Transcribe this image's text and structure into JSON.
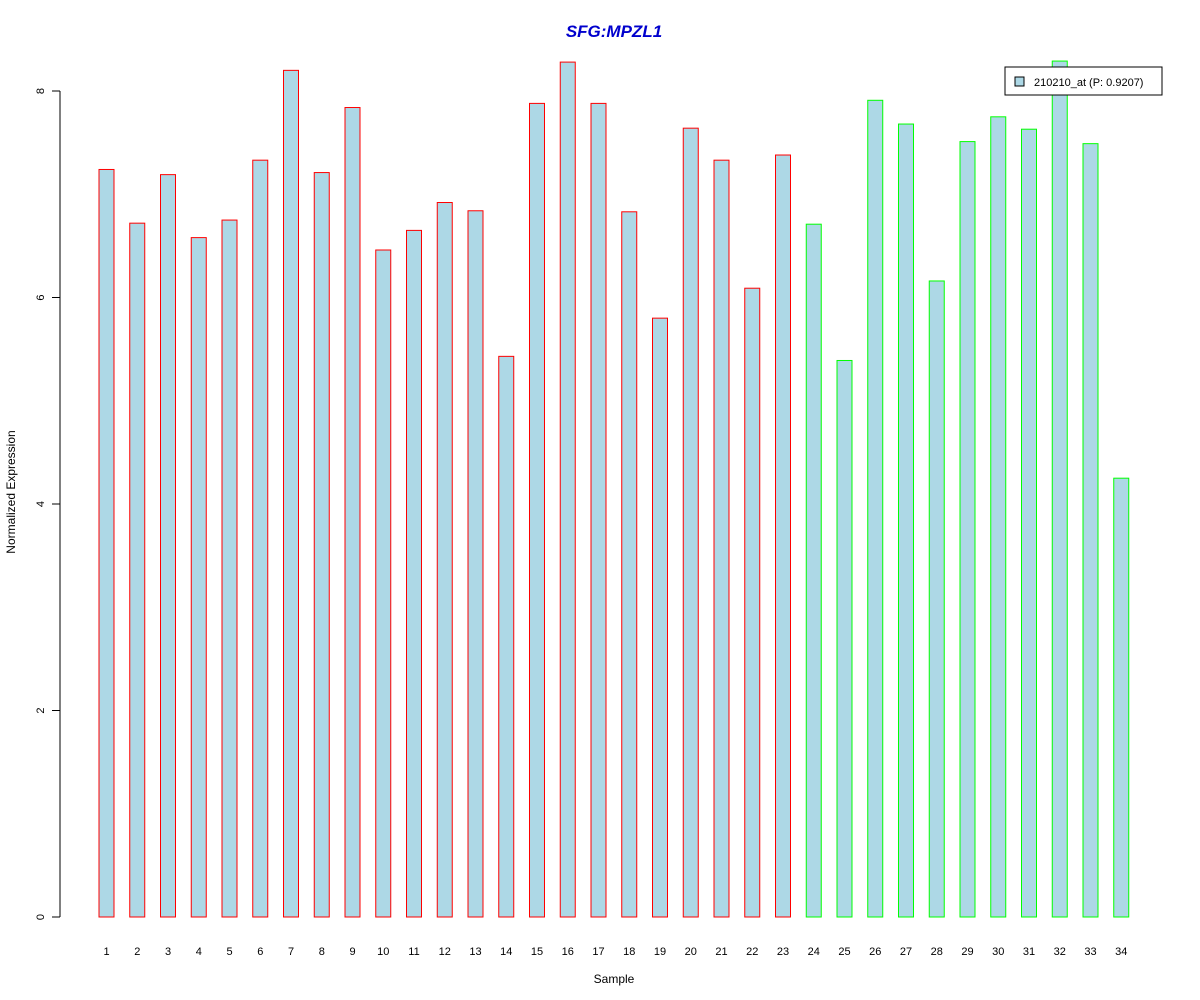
{
  "chart_data": {
    "type": "bar",
    "title": "SFG:MPZL1",
    "xlabel": "Sample",
    "ylabel": "Normalized Expression",
    "ylim": [
      0,
      8.2
    ],
    "yticks": [
      0,
      2,
      4,
      6,
      8
    ],
    "categories": [
      "1",
      "2",
      "3",
      "4",
      "5",
      "6",
      "7",
      "8",
      "9",
      "10",
      "11",
      "12",
      "13",
      "14",
      "15",
      "16",
      "17",
      "18",
      "19",
      "20",
      "21",
      "22",
      "23",
      "24",
      "25",
      "26",
      "27",
      "28",
      "29",
      "30",
      "31",
      "32",
      "33",
      "34"
    ],
    "series": [
      {
        "name": "210210_at (P: 0.9207)",
        "fill": "#ADD8E6",
        "values": [
          7.24,
          6.72,
          7.19,
          6.58,
          6.75,
          7.33,
          8.2,
          7.21,
          7.84,
          6.46,
          6.65,
          6.92,
          6.84,
          5.43,
          7.88,
          8.28,
          7.88,
          6.83,
          5.8,
          7.64,
          7.33,
          6.09,
          7.38,
          6.71,
          5.39,
          7.91,
          7.68,
          6.16,
          7.51,
          7.75,
          7.63,
          8.29,
          7.49,
          4.25
        ]
      }
    ],
    "border_colors": [
      "#FF0000",
      "#FF0000",
      "#FF0000",
      "#FF0000",
      "#FF0000",
      "#FF0000",
      "#FF0000",
      "#FF0000",
      "#FF0000",
      "#FF0000",
      "#FF0000",
      "#FF0000",
      "#FF0000",
      "#FF0000",
      "#FF0000",
      "#FF0000",
      "#FF0000",
      "#FF0000",
      "#FF0000",
      "#FF0000",
      "#FF0000",
      "#FF0000",
      "#FF0000",
      "#00FF00",
      "#00FF00",
      "#00FF00",
      "#00FF00",
      "#00FF00",
      "#00FF00",
      "#00FF00",
      "#00FF00",
      "#00FF00",
      "#00FF00",
      "#00FF00"
    ],
    "legend": {
      "position": "top-right",
      "label": "210210_at (P: 0.9207)"
    },
    "grid": false
  }
}
